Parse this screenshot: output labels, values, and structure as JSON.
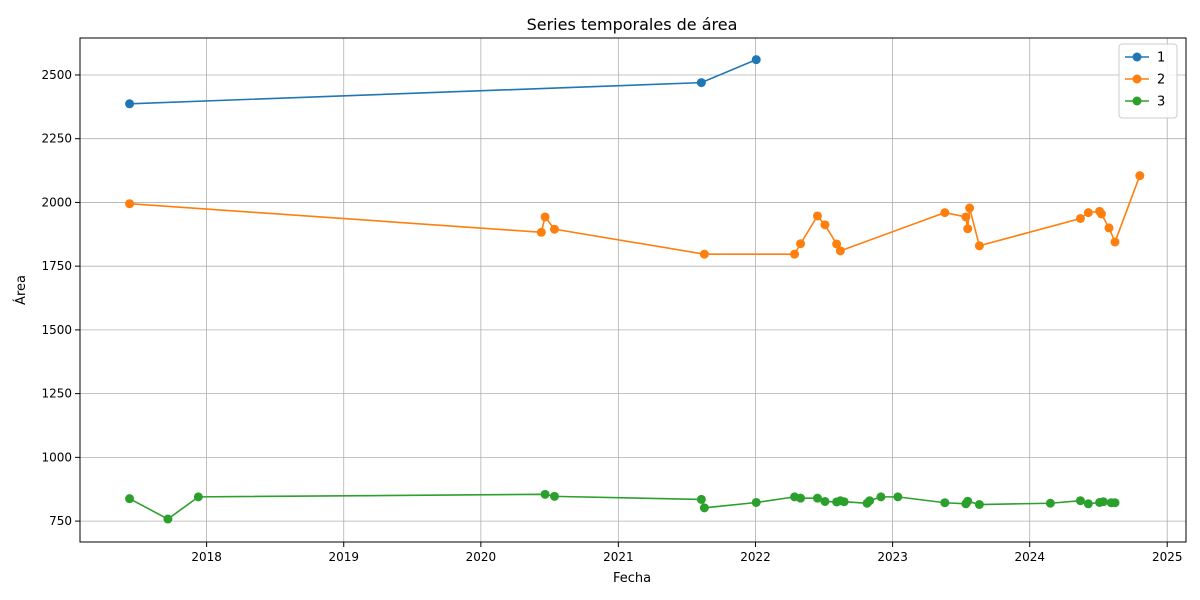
{
  "chart_data": {
    "type": "line",
    "title": "Series temporales de área",
    "xlabel": "Fecha",
    "ylabel": "Área",
    "xlim": [
      "2017-01-29",
      "2025-02-20"
    ],
    "ylim": [
      668,
      2645
    ],
    "x_ticks": [
      "2018",
      "2019",
      "2020",
      "2021",
      "2022",
      "2023",
      "2024",
      "2025"
    ],
    "y_ticks": [
      750,
      1000,
      1250,
      1500,
      1750,
      2000,
      2250,
      2500
    ],
    "grid": true,
    "legend_position": "top-right",
    "series": [
      {
        "name": "1",
        "color": "#1f77b4",
        "points": [
          [
            "2017-06-10",
            2387
          ],
          [
            "2021-08-10",
            2470
          ],
          [
            "2022-01-03",
            2560
          ]
        ]
      },
      {
        "name": "2",
        "color": "#ff7f0e",
        "points": [
          [
            "2017-06-10",
            1995
          ],
          [
            "2020-06-10",
            1883
          ],
          [
            "2020-06-20",
            1943
          ],
          [
            "2020-07-15",
            1895
          ],
          [
            "2021-08-18",
            1797
          ],
          [
            "2022-04-15",
            1797
          ],
          [
            "2022-05-01",
            1838
          ],
          [
            "2022-06-15",
            1947
          ],
          [
            "2022-07-05",
            1912
          ],
          [
            "2022-08-05",
            1837
          ],
          [
            "2022-08-15",
            1810
          ],
          [
            "2023-05-20",
            1960
          ],
          [
            "2023-07-15",
            1943
          ],
          [
            "2023-07-20",
            1897
          ],
          [
            "2023-07-25",
            1978
          ],
          [
            "2023-08-20",
            1830
          ],
          [
            "2024-05-15",
            1937
          ],
          [
            "2024-06-05",
            1960
          ],
          [
            "2024-07-05",
            1965
          ],
          [
            "2024-07-10",
            1955
          ],
          [
            "2024-07-30",
            1900
          ],
          [
            "2024-08-15",
            1845
          ],
          [
            "2024-10-20",
            2105
          ]
        ]
      },
      {
        "name": "3",
        "color": "#2ca02c",
        "points": [
          [
            "2017-06-10",
            838
          ],
          [
            "2017-09-20",
            758
          ],
          [
            "2017-12-10",
            845
          ],
          [
            "2020-06-20",
            855
          ],
          [
            "2020-07-15",
            847
          ],
          [
            "2021-08-10",
            835
          ],
          [
            "2021-08-18",
            802
          ],
          [
            "2022-01-03",
            823
          ],
          [
            "2022-04-15",
            845
          ],
          [
            "2022-05-01",
            840
          ],
          [
            "2022-06-15",
            840
          ],
          [
            "2022-07-05",
            827
          ],
          [
            "2022-08-05",
            825
          ],
          [
            "2022-08-15",
            830
          ],
          [
            "2022-08-25",
            826
          ],
          [
            "2022-10-25",
            820
          ],
          [
            "2022-11-01",
            830
          ],
          [
            "2022-12-01",
            845
          ],
          [
            "2023-01-15",
            845
          ],
          [
            "2023-05-20",
            822
          ],
          [
            "2023-07-15",
            818
          ],
          [
            "2023-07-20",
            828
          ],
          [
            "2023-08-20",
            815
          ],
          [
            "2024-02-25",
            820
          ],
          [
            "2024-05-15",
            830
          ],
          [
            "2024-06-05",
            818
          ],
          [
            "2024-07-05",
            823
          ],
          [
            "2024-07-15",
            826
          ],
          [
            "2024-08-05",
            822
          ],
          [
            "2024-08-15",
            822
          ]
        ]
      }
    ]
  }
}
